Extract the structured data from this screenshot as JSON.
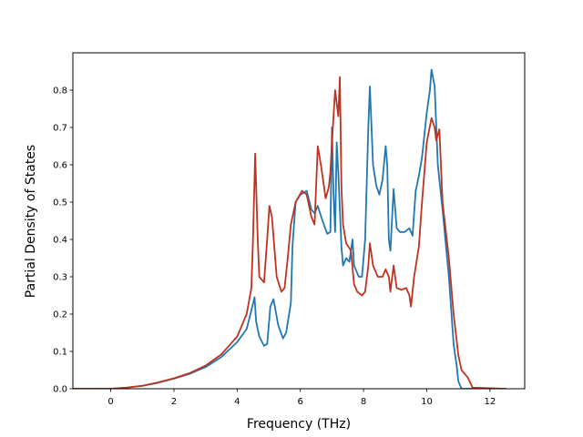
{
  "chart_data": {
    "type": "line",
    "title": "",
    "xlabel": "Frequency (THz)",
    "ylabel": "Partial Density of States",
    "xlim": [
      -1.2,
      13.1
    ],
    "ylim": [
      0.0,
      0.9
    ],
    "xticks": [
      0,
      2,
      4,
      6,
      8,
      10,
      12
    ],
    "yticks": [
      0.0,
      0.1,
      0.2,
      0.3,
      0.4,
      0.5,
      0.6,
      0.7,
      0.8
    ],
    "xtick_labels": [
      "0",
      "2",
      "4",
      "6",
      "8",
      "10",
      "12"
    ],
    "ytick_labels": [
      "0.0",
      "0.1",
      "0.2",
      "0.3",
      "0.4",
      "0.5",
      "0.6",
      "0.7",
      "0.8"
    ],
    "grid": false,
    "legend": "none",
    "series": [
      {
        "color": "#1f77b4",
        "points": [
          [
            -1.2,
            0.0
          ],
          [
            0.0,
            0.0
          ],
          [
            0.5,
            0.003
          ],
          [
            1.0,
            0.008
          ],
          [
            1.5,
            0.016
          ],
          [
            2.0,
            0.027
          ],
          [
            2.5,
            0.04
          ],
          [
            3.0,
            0.058
          ],
          [
            3.5,
            0.085
          ],
          [
            4.0,
            0.125
          ],
          [
            4.3,
            0.16
          ],
          [
            4.45,
            0.21
          ],
          [
            4.55,
            0.245
          ],
          [
            4.6,
            0.18
          ],
          [
            4.7,
            0.14
          ],
          [
            4.85,
            0.115
          ],
          [
            4.95,
            0.12
          ],
          [
            5.05,
            0.22
          ],
          [
            5.15,
            0.24
          ],
          [
            5.3,
            0.17
          ],
          [
            5.45,
            0.135
          ],
          [
            5.55,
            0.15
          ],
          [
            5.7,
            0.23
          ],
          [
            5.75,
            0.38
          ],
          [
            5.85,
            0.5
          ],
          [
            6.0,
            0.52
          ],
          [
            6.2,
            0.53
          ],
          [
            6.35,
            0.48
          ],
          [
            6.45,
            0.47
          ],
          [
            6.55,
            0.49
          ],
          [
            6.7,
            0.45
          ],
          [
            6.85,
            0.415
          ],
          [
            6.95,
            0.42
          ],
          [
            7.0,
            0.7
          ],
          [
            7.05,
            0.52
          ],
          [
            7.1,
            0.42
          ],
          [
            7.15,
            0.66
          ],
          [
            7.2,
            0.58
          ],
          [
            7.25,
            0.48
          ],
          [
            7.3,
            0.38
          ],
          [
            7.35,
            0.33
          ],
          [
            7.45,
            0.35
          ],
          [
            7.55,
            0.34
          ],
          [
            7.65,
            0.4
          ],
          [
            7.7,
            0.33
          ],
          [
            7.85,
            0.3
          ],
          [
            7.95,
            0.3
          ],
          [
            8.05,
            0.4
          ],
          [
            8.15,
            0.7
          ],
          [
            8.2,
            0.81
          ],
          [
            8.3,
            0.6
          ],
          [
            8.4,
            0.545
          ],
          [
            8.5,
            0.52
          ],
          [
            8.6,
            0.56
          ],
          [
            8.7,
            0.65
          ],
          [
            8.75,
            0.6
          ],
          [
            8.8,
            0.4
          ],
          [
            8.85,
            0.37
          ],
          [
            8.95,
            0.535
          ],
          [
            9.05,
            0.43
          ],
          [
            9.15,
            0.42
          ],
          [
            9.3,
            0.42
          ],
          [
            9.45,
            0.43
          ],
          [
            9.55,
            0.41
          ],
          [
            9.65,
            0.53
          ],
          [
            9.75,
            0.57
          ],
          [
            9.85,
            0.62
          ],
          [
            10.0,
            0.74
          ],
          [
            10.1,
            0.8
          ],
          [
            10.15,
            0.855
          ],
          [
            10.25,
            0.81
          ],
          [
            10.35,
            0.6
          ],
          [
            10.5,
            0.48
          ],
          [
            10.7,
            0.3
          ],
          [
            10.85,
            0.12
          ],
          [
            10.95,
            0.06
          ],
          [
            11.0,
            0.02
          ],
          [
            11.1,
            0.0
          ],
          [
            12.5,
            0.0
          ]
        ]
      },
      {
        "color": "#c0321f",
        "points": [
          [
            -1.2,
            0.0
          ],
          [
            0.0,
            0.0
          ],
          [
            0.5,
            0.003
          ],
          [
            1.0,
            0.008
          ],
          [
            1.5,
            0.017
          ],
          [
            2.0,
            0.028
          ],
          [
            2.5,
            0.042
          ],
          [
            3.0,
            0.062
          ],
          [
            3.5,
            0.092
          ],
          [
            4.0,
            0.14
          ],
          [
            4.3,
            0.2
          ],
          [
            4.45,
            0.27
          ],
          [
            4.5,
            0.4
          ],
          [
            4.57,
            0.63
          ],
          [
            4.65,
            0.4
          ],
          [
            4.7,
            0.3
          ],
          [
            4.85,
            0.285
          ],
          [
            4.95,
            0.4
          ],
          [
            5.02,
            0.49
          ],
          [
            5.1,
            0.46
          ],
          [
            5.25,
            0.3
          ],
          [
            5.4,
            0.26
          ],
          [
            5.5,
            0.27
          ],
          [
            5.6,
            0.35
          ],
          [
            5.7,
            0.44
          ],
          [
            5.85,
            0.5
          ],
          [
            6.05,
            0.53
          ],
          [
            6.2,
            0.52
          ],
          [
            6.35,
            0.46
          ],
          [
            6.45,
            0.44
          ],
          [
            6.55,
            0.65
          ],
          [
            6.65,
            0.6
          ],
          [
            6.8,
            0.51
          ],
          [
            6.9,
            0.54
          ],
          [
            6.95,
            0.58
          ],
          [
            7.0,
            0.66
          ],
          [
            7.1,
            0.8
          ],
          [
            7.2,
            0.73
          ],
          [
            7.25,
            0.835
          ],
          [
            7.3,
            0.54
          ],
          [
            7.35,
            0.44
          ],
          [
            7.45,
            0.39
          ],
          [
            7.6,
            0.37
          ],
          [
            7.7,
            0.28
          ],
          [
            7.8,
            0.26
          ],
          [
            7.95,
            0.25
          ],
          [
            8.05,
            0.26
          ],
          [
            8.15,
            0.33
          ],
          [
            8.2,
            0.39
          ],
          [
            8.3,
            0.33
          ],
          [
            8.45,
            0.3
          ],
          [
            8.6,
            0.3
          ],
          [
            8.7,
            0.32
          ],
          [
            8.8,
            0.3
          ],
          [
            8.85,
            0.26
          ],
          [
            8.95,
            0.33
          ],
          [
            9.05,
            0.27
          ],
          [
            9.2,
            0.265
          ],
          [
            9.35,
            0.27
          ],
          [
            9.45,
            0.25
          ],
          [
            9.5,
            0.22
          ],
          [
            9.6,
            0.3
          ],
          [
            9.75,
            0.38
          ],
          [
            9.85,
            0.5
          ],
          [
            10.0,
            0.66
          ],
          [
            10.15,
            0.725
          ],
          [
            10.25,
            0.7
          ],
          [
            10.3,
            0.665
          ],
          [
            10.4,
            0.695
          ],
          [
            10.5,
            0.5
          ],
          [
            10.7,
            0.35
          ],
          [
            10.85,
            0.2
          ],
          [
            11.0,
            0.09
          ],
          [
            11.1,
            0.05
          ],
          [
            11.3,
            0.03
          ],
          [
            11.45,
            0.003
          ],
          [
            12.5,
            0.0
          ]
        ]
      }
    ]
  }
}
